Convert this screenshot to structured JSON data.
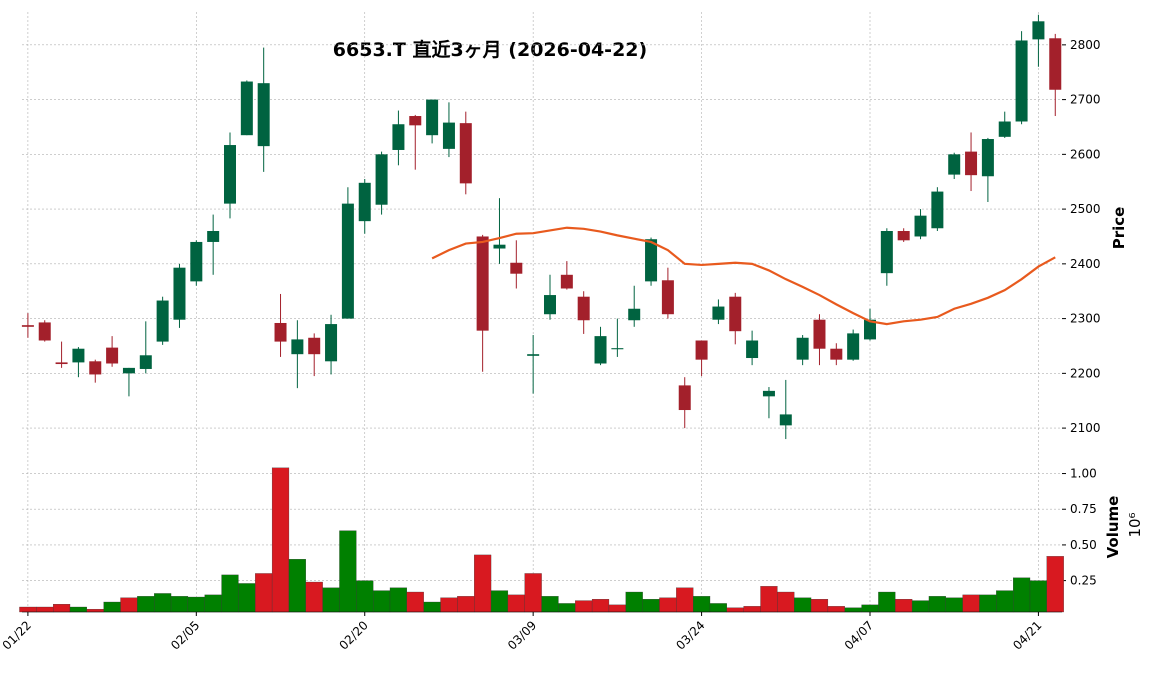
{
  "chart_data": {
    "type": "candlestick",
    "title": "6653.T 直近3ヶ月 (2026-04-22)",
    "y_label": "Price",
    "y2_label": "Volume",
    "y2_offset_label": "10⁶",
    "categories": [
      "01/22",
      null,
      null,
      null,
      null,
      null,
      null,
      null,
      null,
      null,
      "02/05",
      null,
      null,
      null,
      null,
      null,
      null,
      null,
      null,
      null,
      "02/20",
      null,
      null,
      null,
      null,
      null,
      null,
      null,
      null,
      null,
      "03/09",
      null,
      null,
      null,
      null,
      null,
      null,
      null,
      null,
      null,
      "03/24",
      null,
      null,
      null,
      null,
      null,
      null,
      null,
      null,
      null,
      "04/07",
      null,
      null,
      null,
      null,
      null,
      null,
      null,
      null,
      null,
      "04/21",
      null
    ],
    "open": [
      2288,
      2293,
      2220,
      2220,
      2222,
      2247,
      2200,
      2208,
      2258,
      2298,
      2368,
      2440,
      2510,
      2635,
      2615,
      2292,
      2235,
      2265,
      2222,
      2300,
      2478,
      2508,
      2608,
      2670,
      2635,
      2610,
      2657,
      2450,
      2428,
      2402,
      2232,
      2308,
      2380,
      2340,
      2218,
      2244,
      2297,
      2368,
      2370,
      2178,
      2260,
      2298,
      2340,
      2228,
      2158,
      2105,
      2225,
      2298,
      2245,
      2225,
      2262,
      2383,
      2460,
      2450,
      2465,
      2563,
      2605,
      2560,
      2632,
      2660,
      2810,
      2812
    ],
    "high": [
      2310,
      2297,
      2258,
      2248,
      2225,
      2268,
      2210,
      2295,
      2340,
      2400,
      2443,
      2490,
      2640,
      2735,
      2795,
      2345,
      2297,
      2273,
      2307,
      2540,
      2555,
      2605,
      2680,
      2672,
      2700,
      2695,
      2678,
      2453,
      2520,
      2443,
      2270,
      2380,
      2405,
      2350,
      2285,
      2300,
      2360,
      2448,
      2393,
      2193,
      2260,
      2335,
      2347,
      2278,
      2175,
      2188,
      2270,
      2308,
      2255,
      2280,
      2318,
      2465,
      2465,
      2500,
      2540,
      2603,
      2640,
      2630,
      2678,
      2825,
      2855,
      2820
    ],
    "low": [
      2265,
      2258,
      2210,
      2193,
      2183,
      2212,
      2158,
      2200,
      2252,
      2283,
      2360,
      2380,
      2483,
      2635,
      2568,
      2230,
      2173,
      2195,
      2198,
      2300,
      2455,
      2490,
      2580,
      2572,
      2620,
      2595,
      2527,
      2203,
      2400,
      2355,
      2163,
      2298,
      2353,
      2272,
      2215,
      2230,
      2285,
      2360,
      2300,
      2100,
      2195,
      2290,
      2253,
      2215,
      2118,
      2080,
      2215,
      2215,
      2215,
      2223,
      2260,
      2360,
      2440,
      2445,
      2460,
      2555,
      2533,
      2513,
      2630,
      2655,
      2760,
      2670
    ],
    "close": [
      2285,
      2260,
      2217,
      2245,
      2198,
      2218,
      2210,
      2233,
      2333,
      2393,
      2440,
      2460,
      2617,
      2733,
      2730,
      2258,
      2262,
      2235,
      2290,
      2510,
      2548,
      2600,
      2655,
      2653,
      2700,
      2658,
      2547,
      2278,
      2435,
      2382,
      2235,
      2343,
      2355,
      2297,
      2268,
      2246,
      2318,
      2445,
      2308,
      2133,
      2225,
      2322,
      2277,
      2260,
      2168,
      2125,
      2265,
      2245,
      2225,
      2273,
      2298,
      2460,
      2443,
      2488,
      2532,
      2600,
      2562,
      2628,
      2660,
      2808,
      2843,
      2718
    ],
    "volume": [
      0.065,
      0.065,
      0.085,
      0.065,
      0.05,
      0.1,
      0.13,
      0.14,
      0.16,
      0.14,
      0.135,
      0.15,
      0.29,
      0.23,
      0.3,
      1.04,
      0.4,
      0.24,
      0.2,
      0.6,
      0.25,
      0.18,
      0.2,
      0.17,
      0.1,
      0.13,
      0.14,
      0.43,
      0.18,
      0.15,
      0.3,
      0.14,
      0.09,
      0.11,
      0.12,
      0.08,
      0.17,
      0.12,
      0.13,
      0.2,
      0.14,
      0.09,
      0.06,
      0.07,
      0.21,
      0.17,
      0.13,
      0.12,
      0.07,
      0.06,
      0.08,
      0.17,
      0.12,
      0.11,
      0.14,
      0.13,
      0.15,
      0.15,
      0.18,
      0.27,
      0.25,
      0.42
    ],
    "moving_average": {
      "color": "#e85a1e",
      "values": [
        null,
        null,
        null,
        null,
        null,
        null,
        null,
        null,
        null,
        null,
        null,
        null,
        null,
        null,
        null,
        null,
        null,
        null,
        null,
        null,
        null,
        null,
        null,
        null,
        2410,
        2425,
        2437,
        2440,
        2447,
        2455,
        2456,
        2461,
        2466,
        2464,
        2459,
        2452,
        2446,
        2440,
        2425,
        2400,
        2398,
        2400,
        2402,
        2400,
        2388,
        2372,
        2358,
        2343,
        2326,
        2310,
        2295,
        2290,
        2295,
        2298,
        2303,
        2318,
        2327,
        2338,
        2352,
        2372,
        2395,
        2412
      ]
    },
    "up_color": "#006340",
    "down_color": "#a3202b",
    "volume_up_color": "#008000",
    "volume_down_color": "#d81920",
    "ylim": [
      2060,
      2860
    ],
    "yticks": [
      2100,
      2200,
      2300,
      2400,
      2500,
      2600,
      2700,
      2800
    ],
    "y2lim": [
      0.03,
      1.13
    ],
    "y2ticks": [
      0.25,
      {
        "value": 0.5,
        "label": "0.50"
      },
      0.75,
      {
        "value": 1.0,
        "label": "1.00"
      }
    ],
    "grid": true
  }
}
